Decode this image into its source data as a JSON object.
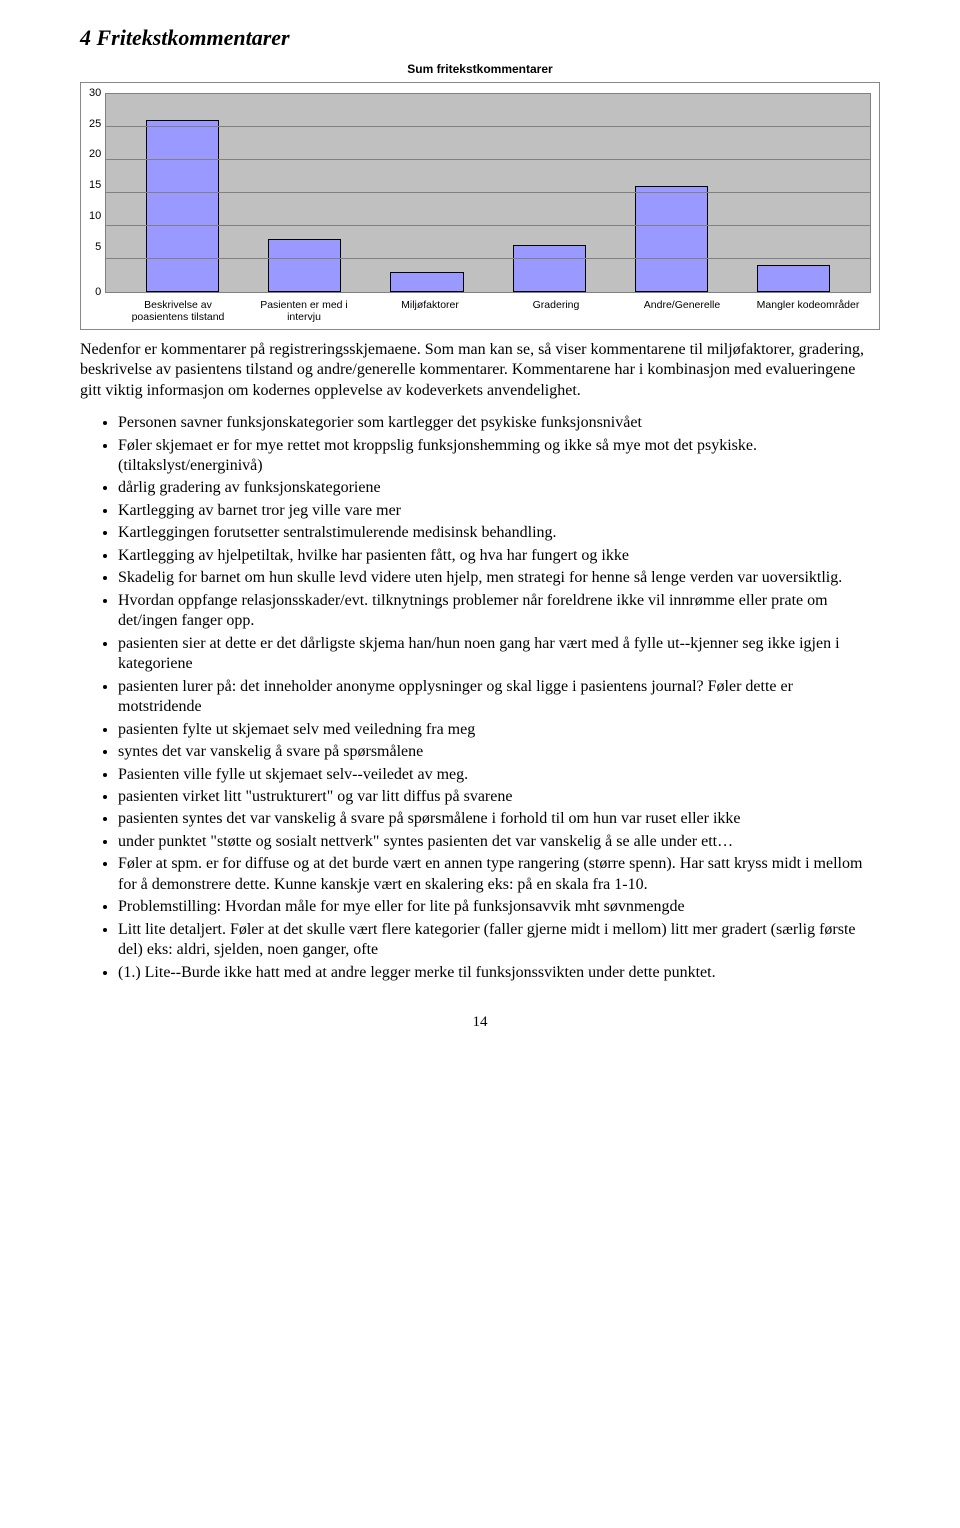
{
  "heading": "4 Fritekstkommentarer",
  "chart": {
    "type": "bar",
    "title": "Sum fritekstkommentarer",
    "background_color": "#c0c0c0",
    "grid_color": "#808080",
    "bar_color": "#9999ff",
    "bar_border": "#000000",
    "ylim": [
      0,
      30
    ],
    "ytick_step": 5,
    "yticks": [
      "30",
      "25",
      "20",
      "15",
      "10",
      "5",
      "0"
    ],
    "categories": [
      "Beskrivelse av poasientens tilstand",
      "Pasienten er med i intervju",
      "Miljøfaktorer",
      "Gradering",
      "Andre/Generelle",
      "Mangler kodeområder"
    ],
    "values": [
      26,
      8,
      3,
      7,
      16,
      4
    ],
    "title_fontsize": 12,
    "label_fontsize": 11,
    "bar_width": 0.45
  },
  "intro": "Nedenfor er kommentarer på registreringsskjemaene. Som man kan se, så viser kommentarene til miljøfaktorer, gradering, beskrivelse av pasientens tilstand og andre/generelle kommentarer. Kommentarene har i kombinasjon med evalueringene gitt viktig informasjon om kodernes opplevelse av kodeverkets anvendelighet.",
  "bullets": [
    "Personen savner funksjonskategorier som kartlegger det psykiske funksjonsnivået",
    "Føler skjemaet er for mye rettet mot kroppslig funksjonshemming og ikke så mye mot det psykiske. (tiltakslyst/energinivå)",
    "dårlig gradering av funksjonskategoriene",
    "Kartlegging av barnet tror jeg ville vare mer",
    "Kartleggingen forutsetter sentralstimulerende medisinsk behandling.",
    "Kartlegging av hjelpetiltak, hvilke har pasienten fått, og hva har fungert og ikke",
    "Skadelig for barnet om hun skulle levd videre uten hjelp, men strategi for henne så lenge verden var uoversiktlig.",
    "Hvordan oppfange relasjonsskader/evt. tilknytnings problemer når foreldrene ikke vil innrømme eller prate om det/ingen fanger opp.",
    "pasienten sier at dette er det dårligste skjema han/hun noen gang har vært med å fylle ut--kjenner seg ikke igjen i kategoriene",
    "pasienten lurer på: det inneholder anonyme opplysninger og skal ligge i pasientens journal? Føler dette er motstridende",
    "pasienten fylte ut skjemaet selv med veiledning fra meg",
    "syntes det var vanskelig å svare på spørsmålene",
    "Pasienten ville fylle ut skjemaet selv--veiledet av meg.",
    "pasienten virket litt \"ustrukturert\" og var litt diffus på svarene",
    "pasienten syntes det var vanskelig å svare på spørsmålene i forhold til om hun var ruset eller ikke",
    "under punktet \"støtte og sosialt nettverk\" syntes pasienten det var vanskelig å se alle under ett…",
    "Føler at spm. er for diffuse og at det burde vært en annen type rangering (større spenn). Har satt kryss midt i mellom for å demonstrere dette. Kunne kanskje vært en skalering eks: på en skala fra 1-10.",
    "Problemstilling: Hvordan måle for mye eller for lite på funksjonsavvik mht søvnmengde",
    "Litt lite detaljert. Føler at det skulle vært flere kategorier (faller gjerne midt i mellom) litt mer gradert (særlig første del) eks: aldri, sjelden, noen ganger, ofte",
    "(1.) Lite--Burde ikke hatt med at andre legger merke til funksjonssvikten under dette punktet."
  ],
  "page_number": "14"
}
